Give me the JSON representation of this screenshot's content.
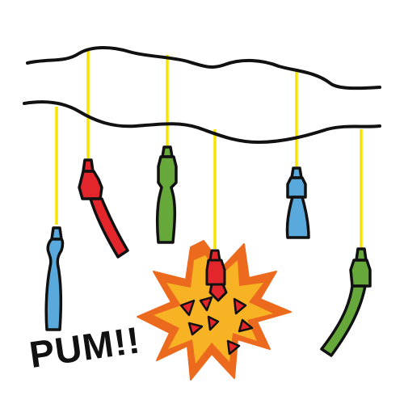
{
  "scene": {
    "shout_text": "PUM!!",
    "colors": {
      "outline": "#111111",
      "thread": "#f5e400",
      "rocket_blue": "#5aa9dd",
      "rocket_red": "#e3262b",
      "rocket_green": "#66a93a",
      "burst_outer": "#ec6a1e",
      "burst_inner": "#f8b324"
    },
    "firecrackers": [
      {
        "color": "blue"
      },
      {
        "color": "red"
      },
      {
        "color": "green"
      },
      {
        "color": "red",
        "state": "exploding"
      },
      {
        "color": "blue"
      },
      {
        "color": "green"
      }
    ]
  }
}
